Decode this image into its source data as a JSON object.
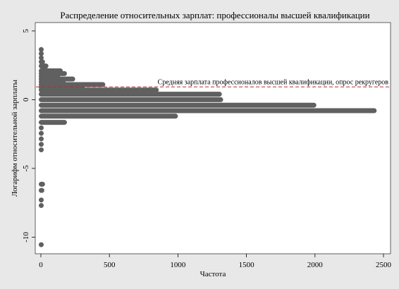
{
  "chart_data": {
    "type": "bar",
    "orientation": "horizontal",
    "title": "Распределение относительных зарплат: профессионалы высшей квалификации",
    "xlabel": "Частота",
    "ylabel": "Логарифм относительной зарплаты",
    "xlim": [
      0,
      2500
    ],
    "ylim": [
      -10.8,
      5.2
    ],
    "x_ticks": [
      "0",
      "500",
      "1000",
      "1500",
      "2000",
      "2500"
    ],
    "x_tick_values": [
      0,
      500,
      1000,
      1500,
      2000,
      2500
    ],
    "y_ticks": [
      "5",
      "0",
      "-5",
      "-10"
    ],
    "y_tick_values": [
      5,
      0,
      -5,
      -10
    ],
    "grid": false,
    "bar_color": "#606060",
    "reference_line": {
      "y": 0.93,
      "label": "Средняя зарплата профессионалов высшей квалификации, опрос рекругеров",
      "color": "#b03030"
    },
    "bars": [
      {
        "y": 3.65,
        "freq": 10
      },
      {
        "y": 3.35,
        "freq": 12
      },
      {
        "y": 3.05,
        "freq": 15
      },
      {
        "y": 2.75,
        "freq": 30
      },
      {
        "y": 2.45,
        "freq": 55
      },
      {
        "y": 2.1,
        "freq": 160
      },
      {
        "y": 1.9,
        "freq": 190
      },
      {
        "y": 1.7,
        "freq": 140
      },
      {
        "y": 1.5,
        "freq": 250
      },
      {
        "y": 1.3,
        "freq": 180
      },
      {
        "y": 1.1,
        "freq": 470
      },
      {
        "y": 0.9,
        "freq": 320
      },
      {
        "y": 0.7,
        "freq": 860
      },
      {
        "y": 0.4,
        "freq": 1320
      },
      {
        "y": 0.0,
        "freq": 1330
      },
      {
        "y": -0.4,
        "freq": 2010
      },
      {
        "y": -0.8,
        "freq": 2450
      },
      {
        "y": -1.2,
        "freq": 1000
      },
      {
        "y": -1.65,
        "freq": 190
      },
      {
        "y": -2.05,
        "freq": 15
      },
      {
        "y": -2.45,
        "freq": 12
      },
      {
        "y": -2.85,
        "freq": 10
      },
      {
        "y": -3.25,
        "freq": 8
      },
      {
        "y": -3.65,
        "freq": 8
      },
      {
        "y": -6.15,
        "freq": 30
      },
      {
        "y": -6.6,
        "freq": 25
      },
      {
        "y": -7.3,
        "freq": 10
      },
      {
        "y": -7.7,
        "freq": 8
      },
      {
        "y": -10.55,
        "freq": 5
      }
    ]
  }
}
